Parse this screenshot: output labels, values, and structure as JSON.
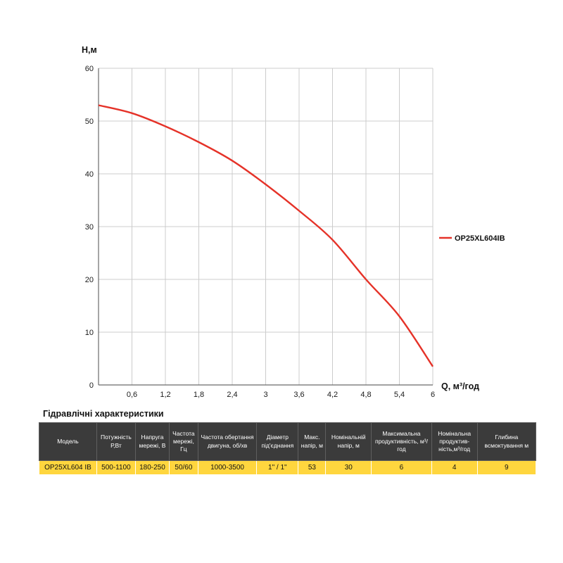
{
  "chart_data": {
    "type": "line",
    "title": "",
    "xlabel": "Q,  м³/год",
    "ylabel": "H,м",
    "xlim": [
      0,
      6
    ],
    "ylim": [
      0,
      60
    ],
    "grid": true,
    "legend_position": "right",
    "xticks": {
      "values": [
        0,
        0.6,
        1.2,
        1.8,
        2.4,
        3,
        3.6,
        4.2,
        4.8,
        5.4,
        6
      ],
      "labels": [
        "0",
        "0,6",
        "1,2",
        "1,8",
        "2,4",
        "3",
        "3,6",
        "4,2",
        "4,8",
        "5,4",
        "6"
      ]
    },
    "yticks": {
      "values": [
        0,
        10,
        20,
        30,
        40,
        50,
        60
      ],
      "labels": [
        "0",
        "10",
        "20",
        "30",
        "40",
        "50",
        "60"
      ]
    },
    "series": [
      {
        "name": "OP25XL604IB",
        "x": [
          0,
          0.6,
          1.2,
          1.8,
          2.4,
          3,
          3.6,
          4.2,
          4.8,
          5.4,
          6
        ],
        "y": [
          53,
          51.5,
          49,
          46,
          42.5,
          38,
          33,
          27.5,
          20,
          13,
          3.5
        ]
      }
    ]
  },
  "colors": {
    "curve": "#e53228",
    "grid": "#cccccc",
    "axis": "#6a6a6a",
    "header_bg": "#3b3b3b",
    "header_text": "#ffffff",
    "row_bg": "#ffd63e"
  },
  "table": {
    "title": "Гідравлічні характеристики",
    "headers": [
      "Модель",
      "Потужність Р,Вт",
      "Напруга мережі, В",
      "Частота мережі, Гц",
      "Частота обертання двигуна, об/хв",
      "Діаметр під'єднання",
      "Макс. напір, м",
      "Номінальній напір, м",
      "Максимальна продуктивність, м³/год",
      "Номінальна продуктив- ність,м³/год",
      "Глибина всмоктування м"
    ],
    "rows": [
      [
        "OP25XL604 IB",
        "500-1100",
        "180-250",
        "50/60",
        "1000-3500",
        "1\" / 1\"",
        "53",
        "30",
        "6",
        "4",
        "9"
      ]
    ]
  }
}
